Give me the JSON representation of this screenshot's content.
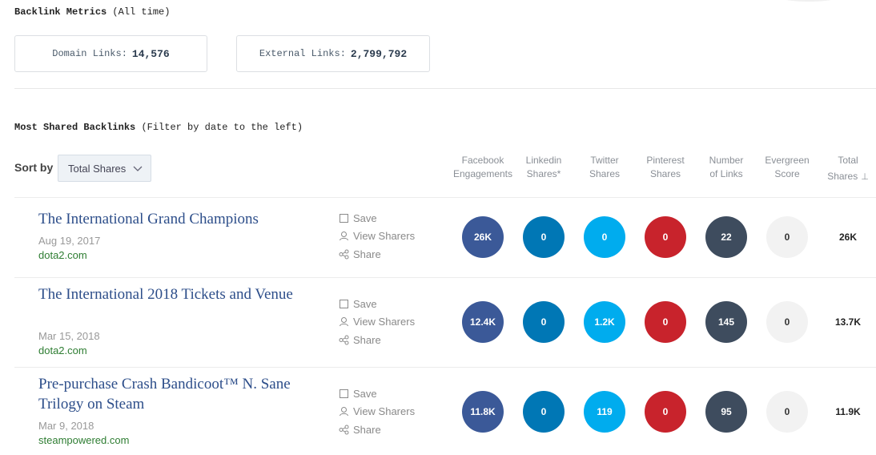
{
  "backlink_metrics": {
    "title": "Backlink Metrics",
    "subtitle": "(All time)",
    "domain_links_label": "Domain Links:",
    "domain_links_value": "14,576",
    "external_links_label": "External Links:",
    "external_links_value": "2,799,792"
  },
  "most_shared": {
    "title": "Most Shared Backlinks",
    "subtitle": "(Filter by date to the left)"
  },
  "sort": {
    "label": "Sort by",
    "selected": "Total Shares"
  },
  "columns": {
    "facebook": [
      "Facebook",
      "Engagements"
    ],
    "linkedin": [
      "Linkedin",
      "Shares*"
    ],
    "twitter": [
      "Twitter",
      "Shares"
    ],
    "pinterest": [
      "Pinterest",
      "Shares"
    ],
    "links": [
      "Number",
      "of Links"
    ],
    "evergreen": [
      "Evergreen",
      "Score"
    ],
    "total": [
      "Total",
      "Shares"
    ],
    "total_sort_icon": "sort-descending-icon"
  },
  "actions": {
    "save": "Save",
    "view_sharers": "View Sharers",
    "share": "Share"
  },
  "colors": {
    "facebook": "#3b5998",
    "linkedin": "#0077b5",
    "twitter": "#00acee",
    "pinterest": "#c8232c",
    "links": "#3e4c5e",
    "evergreen": "#f2f2f2"
  },
  "rows": [
    {
      "title": "The International Grand Champions",
      "date": "Aug 19, 2017",
      "domain": "dota2.com",
      "facebook": "26K",
      "linkedin": "0",
      "twitter": "0",
      "pinterest": "0",
      "links": "22",
      "evergreen": "0",
      "total": "26K"
    },
    {
      "title": "The International 2018 Tickets and Venue",
      "date": "Mar 15, 2018",
      "domain": "dota2.com",
      "facebook": "12.4K",
      "linkedin": "0",
      "twitter": "1.2K",
      "pinterest": "0",
      "links": "145",
      "evergreen": "0",
      "total": "13.7K"
    },
    {
      "title": "Pre-purchase Crash Bandicoot™ N. Sane Trilogy on Steam",
      "date": "Mar 9, 2018",
      "domain": "steampowered.com",
      "facebook": "11.8K",
      "linkedin": "0",
      "twitter": "119",
      "pinterest": "0",
      "links": "95",
      "evergreen": "0",
      "total": "11.9K"
    }
  ]
}
